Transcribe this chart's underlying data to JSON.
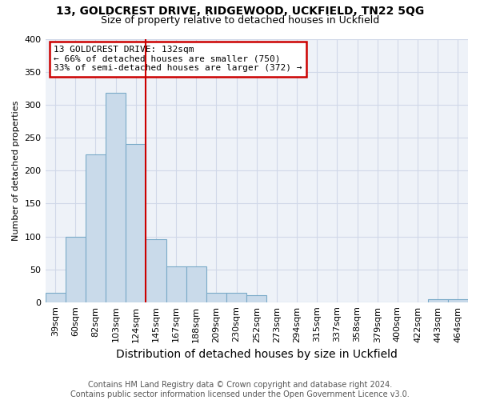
{
  "title1": "13, GOLDCREST DRIVE, RIDGEWOOD, UCKFIELD, TN22 5QG",
  "title2": "Size of property relative to detached houses in Uckfield",
  "xlabel": "Distribution of detached houses by size in Uckfield",
  "ylabel": "Number of detached properties",
  "footnote": "Contains HM Land Registry data © Crown copyright and database right 2024.\nContains public sector information licensed under the Open Government Licence v3.0.",
  "categories": [
    "39sqm",
    "60sqm",
    "82sqm",
    "103sqm",
    "124sqm",
    "145sqm",
    "167sqm",
    "188sqm",
    "209sqm",
    "230sqm",
    "252sqm",
    "273sqm",
    "294sqm",
    "315sqm",
    "337sqm",
    "358sqm",
    "379sqm",
    "400sqm",
    "422sqm",
    "443sqm",
    "464sqm"
  ],
  "values": [
    14,
    100,
    225,
    318,
    240,
    96,
    54,
    54,
    14,
    14,
    10,
    0,
    0,
    0,
    0,
    0,
    0,
    0,
    0,
    5,
    5
  ],
  "bar_color": "#c9daea",
  "bar_edge_color": "#7aaac8",
  "vline_x_index": 4,
  "vline_color": "#cc0000",
  "annotation_text": "13 GOLDCREST DRIVE: 132sqm\n← 66% of detached houses are smaller (750)\n33% of semi-detached houses are larger (372) →",
  "annotation_box_color": "#ffffff",
  "annotation_box_edge": "#cc0000",
  "ylim": [
    0,
    400
  ],
  "yticks": [
    0,
    50,
    100,
    150,
    200,
    250,
    300,
    350,
    400
  ],
  "grid_color": "#d0d8e8",
  "bg_color": "#eef2f8",
  "title1_fontsize": 10,
  "title2_fontsize": 9,
  "xlabel_fontsize": 10,
  "ylabel_fontsize": 8,
  "tick_fontsize": 8,
  "annotation_fontsize": 8,
  "footnote_fontsize": 7
}
